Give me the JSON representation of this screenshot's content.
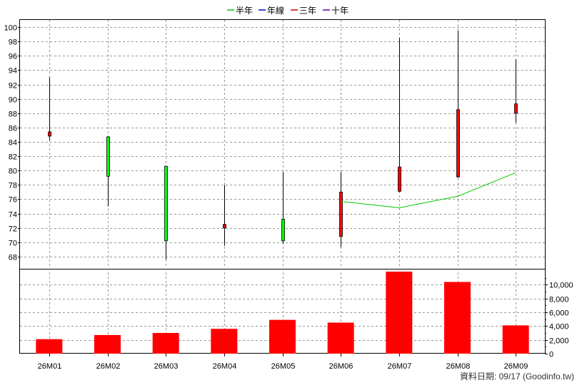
{
  "legend": [
    {
      "label": "半年",
      "color": "#00cc00"
    },
    {
      "label": "年線",
      "color": "#0000cc"
    },
    {
      "label": "三年",
      "color": "#cc0000"
    },
    {
      "label": "十年",
      "color": "#6600aa"
    }
  ],
  "footer": "資料日期: 09/17   (Goodinfo.tw)",
  "colors": {
    "up": "#ff0000",
    "down": "#00ff00",
    "volume": "#ff0000",
    "grid": "#999999",
    "wick": "#000000"
  },
  "chart_data": [
    {
      "type": "candlestick",
      "categories": [
        "26M01",
        "26M02",
        "26M03",
        "26M04",
        "26M05",
        "26M06",
        "26M07",
        "26M08",
        "26M09"
      ],
      "ylim": [
        66,
        101
      ],
      "yticks": [
        68,
        70,
        72,
        74,
        76,
        78,
        80,
        82,
        84,
        86,
        88,
        90,
        92,
        94,
        96,
        98,
        100
      ],
      "grid": true,
      "legend_position": "top-center",
      "candles": [
        {
          "open": 84.8,
          "high": 93.0,
          "low": 84.2,
          "close": 85.4
        },
        {
          "open": 84.7,
          "high": 84.8,
          "low": 75.0,
          "close": 79.2
        },
        {
          "open": 80.6,
          "high": 80.6,
          "low": 67.6,
          "close": 70.2
        },
        {
          "open": 72.0,
          "high": 78.0,
          "low": 69.5,
          "close": 72.5
        },
        {
          "open": 73.2,
          "high": 79.8,
          "low": 69.8,
          "close": 70.2
        },
        {
          "open": 70.8,
          "high": 79.8,
          "low": 69.3,
          "close": 77.0
        },
        {
          "open": 77.1,
          "high": 98.5,
          "low": 77.0,
          "close": 80.5
        },
        {
          "open": 79.1,
          "high": 99.5,
          "low": 79.0,
          "close": 88.5
        },
        {
          "open": 88.0,
          "high": 95.5,
          "low": 86.7,
          "close": 89.3
        }
      ],
      "series": [
        {
          "name": "半年",
          "color": "#00cc00",
          "values": [
            null,
            null,
            null,
            null,
            null,
            75.7,
            74.8,
            76.4,
            79.7
          ]
        }
      ]
    },
    {
      "type": "bar",
      "categories": [
        "26M01",
        "26M02",
        "26M03",
        "26M04",
        "26M05",
        "26M06",
        "26M07",
        "26M08",
        "26M09"
      ],
      "values": [
        2100,
        2700,
        3000,
        3600,
        4900,
        4500,
        11900,
        10400,
        4100
      ],
      "ylim": [
        0,
        12000
      ],
      "yticks": [
        0,
        2000,
        4000,
        6000,
        8000,
        10000
      ],
      "ytick_labels": [
        "0",
        "2,000",
        "4,000",
        "6,000",
        "8,000",
        "10,000"
      ],
      "grid": true
    }
  ]
}
